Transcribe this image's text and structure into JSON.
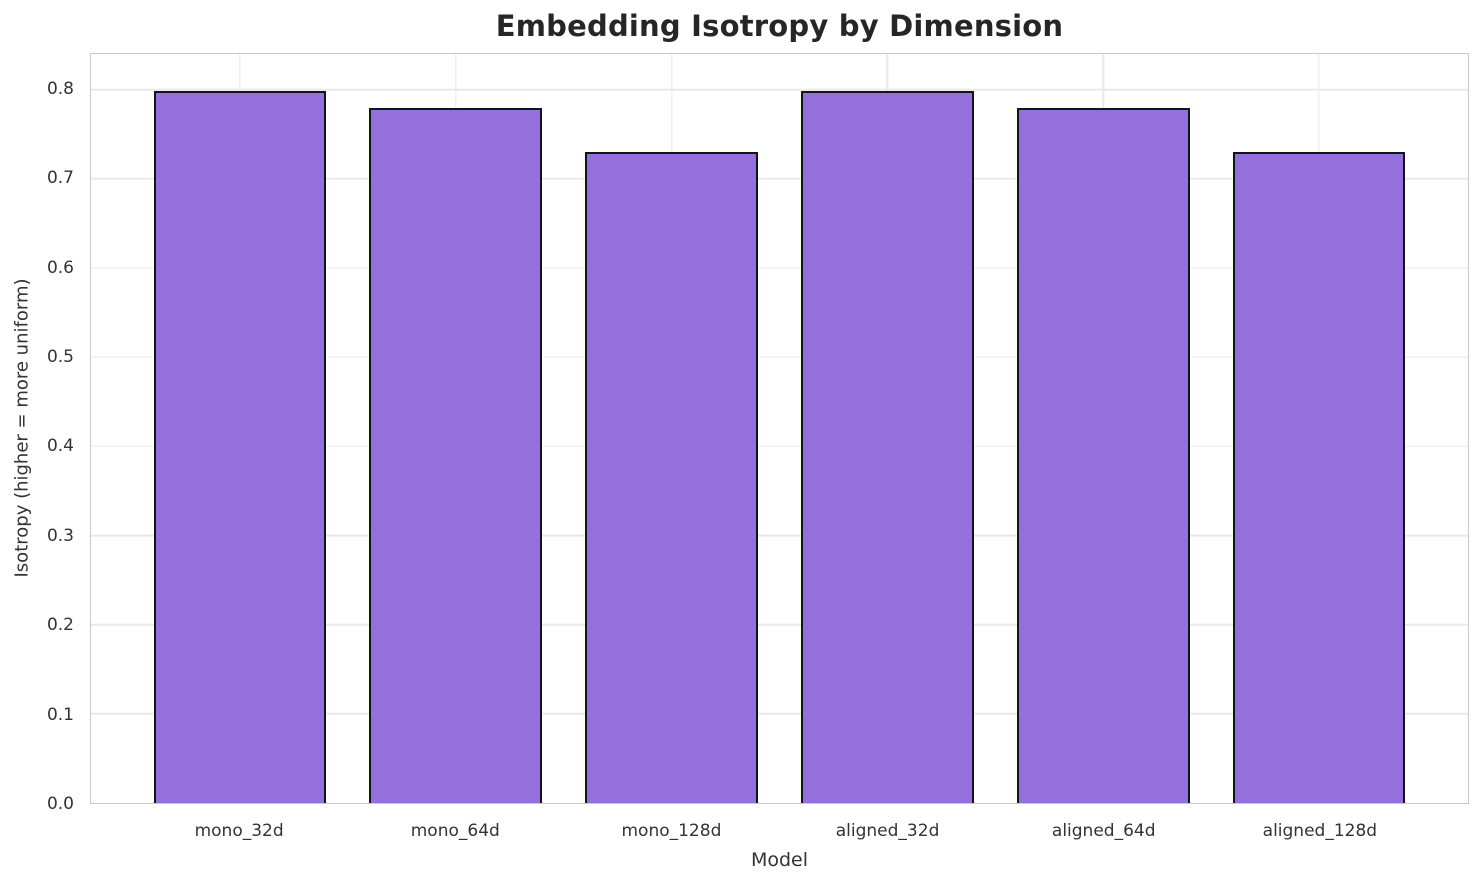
{
  "colors": {
    "bar_fill": "#9370DB",
    "bar_edge": "#141414",
    "grid": "#e9e9e9",
    "spine": "#c9c9c9",
    "title_text": "#262626",
    "tick_text": "#333333",
    "bg": "#ffffff"
  },
  "chart_data": {
    "type": "bar",
    "title": "Embedding Isotropy by Dimension",
    "xlabel": "Model",
    "ylabel": "Isotropy (higher = more uniform)",
    "categories": [
      "mono_32d",
      "mono_64d",
      "mono_128d",
      "aligned_32d",
      "aligned_64d",
      "aligned_128d"
    ],
    "values": [
      0.798,
      0.779,
      0.73,
      0.798,
      0.779,
      0.73
    ],
    "ylim": [
      0,
      0.84
    ],
    "xlim": [
      -0.69,
      5.69
    ],
    "bar_width": 0.8,
    "grid": true,
    "legend_position": "none",
    "yticks": [
      {
        "v": 0.0,
        "label": "0.0"
      },
      {
        "v": 0.1,
        "label": "0.1"
      },
      {
        "v": 0.2,
        "label": "0.2"
      },
      {
        "v": 0.3,
        "label": "0.3"
      },
      {
        "v": 0.4,
        "label": "0.4"
      },
      {
        "v": 0.5,
        "label": "0.5"
      },
      {
        "v": 0.6,
        "label": "0.6"
      },
      {
        "v": 0.7,
        "label": "0.7"
      },
      {
        "v": 0.8,
        "label": "0.8"
      }
    ]
  }
}
